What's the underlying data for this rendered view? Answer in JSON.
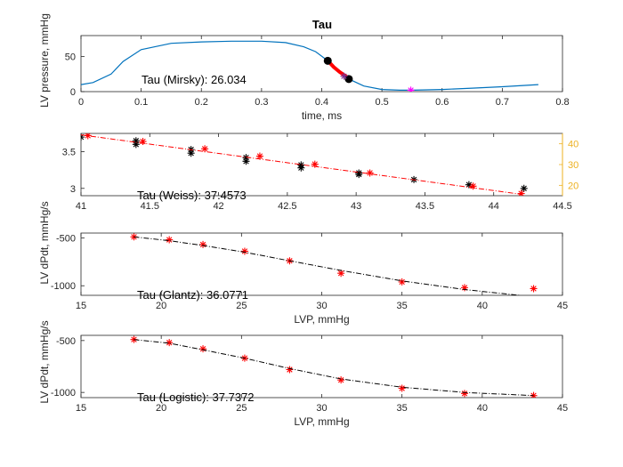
{
  "figure": {
    "title": "Tau"
  },
  "chart_data": [
    {
      "id": "p1",
      "type": "line",
      "title": "Tau",
      "xlabel": "time, ms",
      "ylabel": "LV pressure, mmHg",
      "xlim": [
        0,
        0.8
      ],
      "ylim": [
        0,
        80
      ],
      "xticks": [
        0,
        0.1,
        0.2,
        0.3,
        0.4,
        0.5,
        0.6,
        0.7,
        0.8
      ],
      "yticks": [
        0,
        50
      ],
      "annotation": "Tau (Mirsky): 26.034",
      "colors": {
        "curve": "#0072BD",
        "fit": "#FF0000",
        "marker": "#000000",
        "star": "#7E2F8E",
        "min": "#FF00FF"
      },
      "series": [
        {
          "style": "curve",
          "x": [
            0,
            0.02,
            0.05,
            0.07,
            0.1,
            0.15,
            0.2,
            0.25,
            0.3,
            0.34,
            0.37,
            0.39,
            0.41,
            0.43,
            0.445,
            0.47,
            0.5,
            0.53,
            0.55,
            0.6,
            0.65,
            0.7,
            0.76
          ],
          "y": [
            10,
            13,
            25,
            43,
            60,
            69,
            71,
            72,
            72,
            70,
            64,
            57,
            44,
            28,
            18,
            8,
            3,
            2,
            2,
            3,
            5,
            7,
            10
          ]
        },
        {
          "style": "fit",
          "x": [
            0.41,
            0.42,
            0.43,
            0.44,
            0.445
          ],
          "y": [
            44,
            35,
            28,
            22,
            18
          ]
        },
        {
          "style": "dots",
          "x": [
            0.41,
            0.445
          ],
          "y": [
            44,
            18
          ]
        },
        {
          "style": "star",
          "x": [
            0.437
          ],
          "y": [
            22
          ]
        },
        {
          "style": "min",
          "x": [
            0.548
          ],
          "y": [
            2
          ]
        }
      ]
    },
    {
      "id": "p2",
      "type": "scatter",
      "xlim": [
        41,
        44.5
      ],
      "ylim": [
        2.9,
        3.75
      ],
      "xticks": [
        41,
        41.5,
        42,
        42.5,
        43,
        43.5,
        44,
        44.5
      ],
      "yticks": [
        3,
        3.5
      ],
      "y2lim": [
        15,
        45
      ],
      "y2ticks": [
        20,
        30,
        40
      ],
      "annotation": "Tau (Weiss): 37.4573",
      "colors": {
        "black": "#000000",
        "red": "#FF0000",
        "y2axis": "#EDB120"
      },
      "series": [
        {
          "style": "black-star",
          "x": [
            41.0,
            41.4,
            41.4,
            41.8,
            41.8,
            42.2,
            42.2,
            42.6,
            42.6,
            43.02,
            43.02,
            43.42,
            43.82,
            44.22
          ],
          "y": [
            3.7,
            3.65,
            3.6,
            3.53,
            3.48,
            3.42,
            3.37,
            3.32,
            3.28,
            3.21,
            3.19,
            3.12,
            3.05,
            3.0
          ]
        },
        {
          "style": "red-star",
          "x": [
            41.05,
            41.45,
            41.9,
            42.3,
            42.7,
            43.1,
            43.85,
            44.2
          ],
          "y": [
            3.72,
            3.64,
            3.54,
            3.44,
            3.33,
            3.21,
            3.03,
            2.93
          ]
        },
        {
          "style": "red-dashdot",
          "x": [
            41.0,
            44.2
          ],
          "y": [
            3.73,
            2.92
          ]
        }
      ]
    },
    {
      "id": "p3",
      "type": "scatter",
      "xlim": [
        15,
        45
      ],
      "ylim": [
        -1100,
        -450
      ],
      "xticks": [
        15,
        20,
        25,
        30,
        35,
        40,
        45
      ],
      "yticks": [
        -1000,
        -500
      ],
      "ylabel": "LV dPdt, mmHg/s",
      "annotation": "Tau (Glantz): 36.0771",
      "colors": {
        "red": "#FF0000",
        "fit": "#000000"
      },
      "series": [
        {
          "style": "red-star",
          "x": [
            18.3,
            20.5,
            22.6,
            25.2,
            28.0,
            31.2,
            35.0,
            38.9,
            43.2
          ],
          "y": [
            -490,
            -520,
            -570,
            -640,
            -740,
            -870,
            -960,
            -1020,
            -1030
          ]
        },
        {
          "style": "black-dashdot",
          "x": [
            18.3,
            20.5,
            22.6,
            25.2,
            28.0,
            31.2,
            35.0,
            38.9,
            42.3
          ],
          "y": [
            -490,
            -530,
            -580,
            -650,
            -740,
            -840,
            -950,
            -1040,
            -1100
          ]
        }
      ]
    },
    {
      "id": "p4",
      "type": "scatter",
      "xlim": [
        15,
        45
      ],
      "ylim": [
        -1050,
        -450
      ],
      "xticks": [
        15,
        20,
        25,
        30,
        35,
        40,
        45
      ],
      "yticks": [
        -1000,
        -500
      ],
      "xlabel": "LVP, mmHg",
      "ylabel": "LV dPdt, mmHg/s",
      "annotation": "Tau (Logistic): 37.7372",
      "colors": {
        "red": "#FF0000",
        "fit": "#000000"
      },
      "series": [
        {
          "style": "red-star",
          "x": [
            18.3,
            20.5,
            22.6,
            25.2,
            28.0,
            31.2,
            35.0,
            38.9,
            43.2
          ],
          "y": [
            -490,
            -520,
            -580,
            -670,
            -780,
            -880,
            -960,
            -1010,
            -1030
          ]
        },
        {
          "style": "black-dashdot",
          "x": [
            18.3,
            20.5,
            22.6,
            25.2,
            28.0,
            31.2,
            35.0,
            38.9,
            43.2
          ],
          "y": [
            -490,
            -525,
            -590,
            -670,
            -770,
            -870,
            -950,
            -1000,
            -1030
          ]
        }
      ]
    }
  ],
  "shared": {
    "p3_xlabel": "LVP, mmHg"
  }
}
